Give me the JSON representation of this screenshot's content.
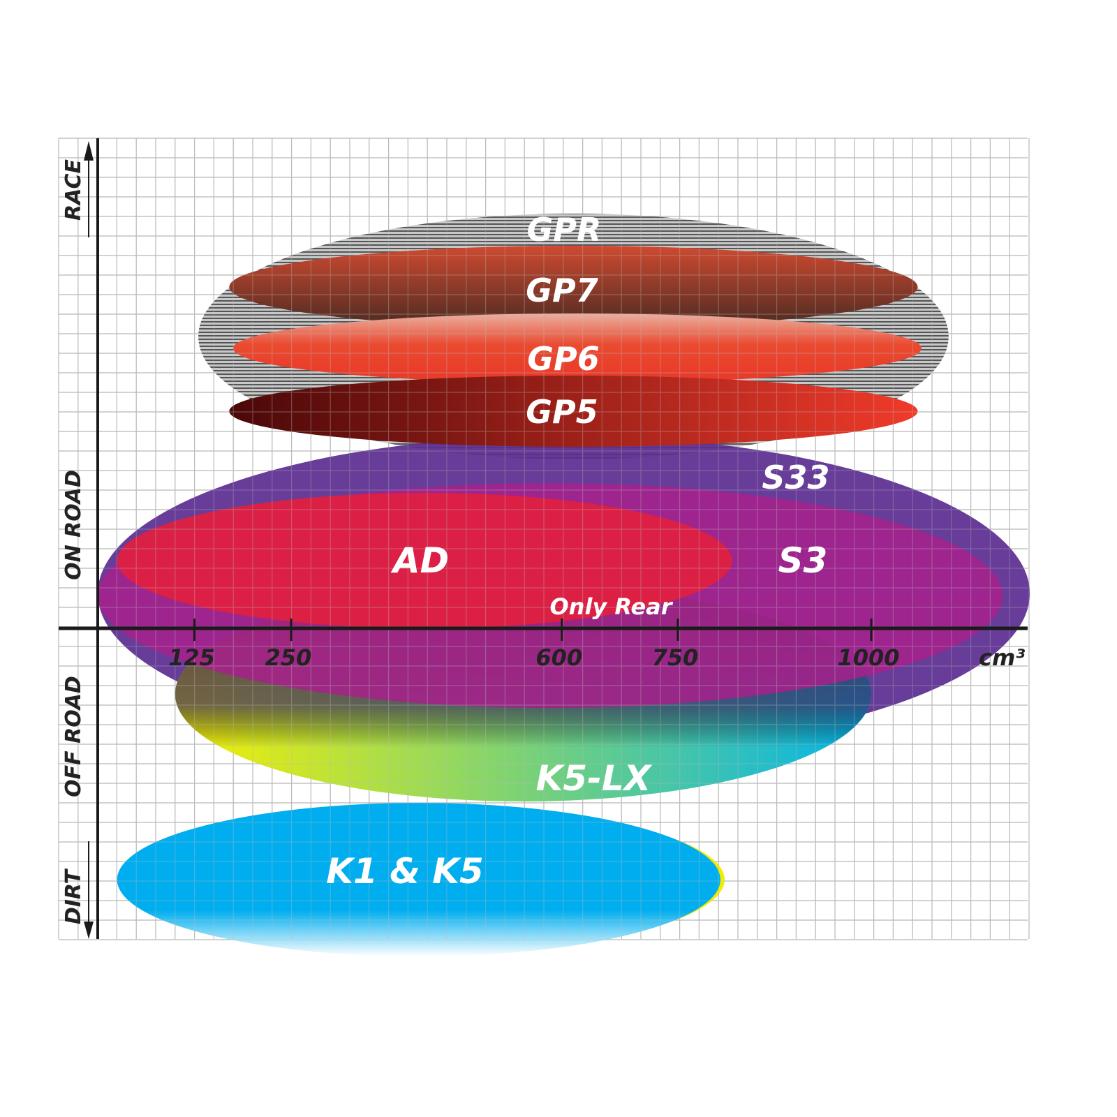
{
  "chart_data": {
    "type": "range-ellipse",
    "x_axis": {
      "unit": "cm³",
      "ticks": [
        125,
        250,
        600,
        750,
        1000
      ],
      "tick_labels": [
        "125",
        "250",
        "600",
        "750",
        "1000"
      ]
    },
    "y_axis": {
      "zones": [
        "RACE",
        "ON ROAD",
        "OFF ROAD",
        "DIRT"
      ]
    },
    "grid": true,
    "series": [
      {
        "name": "GPR",
        "x_range_cc": [
          130,
          1100
        ],
        "zone": "RACE",
        "color": "#9a9a9a"
      },
      {
        "name": "GP7",
        "x_range_cc": [
          170,
          1060
        ],
        "zone": "RACE",
        "color": "#7a3a2a"
      },
      {
        "name": "GP6",
        "x_range_cc": [
          175,
          1065
        ],
        "zone": "RACE",
        "color": "#e8402e"
      },
      {
        "name": "GP5",
        "x_range_cc": [
          170,
          1060
        ],
        "zone": "RACE",
        "color": "#9a1a10"
      },
      {
        "name": "S33",
        "x_range_cc": [
          0,
          1205
        ],
        "zone": "ON ROAD",
        "color": "#5c2d91"
      },
      {
        "name": "S3",
        "x_range_cc": [
          0,
          1170
        ],
        "zone": "ON ROAD",
        "color": "#a0208c"
      },
      {
        "name": "AD",
        "x_range_cc": [
          25,
          820
        ],
        "zone": "ON ROAD",
        "color": "#e02040"
      },
      {
        "name": "K5-LX",
        "x_range_cc": [
          100,
          1000
        ],
        "zone": "OFF ROAD",
        "color": "#20c0e0",
        "note": "Only Rear"
      },
      {
        "name": "K1 & K5",
        "x_range_cc": [
          25,
          805
        ],
        "zone": "DIRT",
        "color": "#00aeef"
      }
    ]
  },
  "labels": {
    "gpr": "GPR",
    "gp7": "GP7",
    "gp6": "GP6",
    "gp5": "GP5",
    "s33": "S33",
    "s3": "S3",
    "ad": "AD",
    "only_rear": "Only Rear",
    "k5lx": "K5-LX",
    "k1k5": "K1 & K5",
    "race": "RACE",
    "on_road": "ON ROAD",
    "off_road": "OFF ROAD",
    "dirt": "DIRT",
    "unit": "cm³"
  }
}
